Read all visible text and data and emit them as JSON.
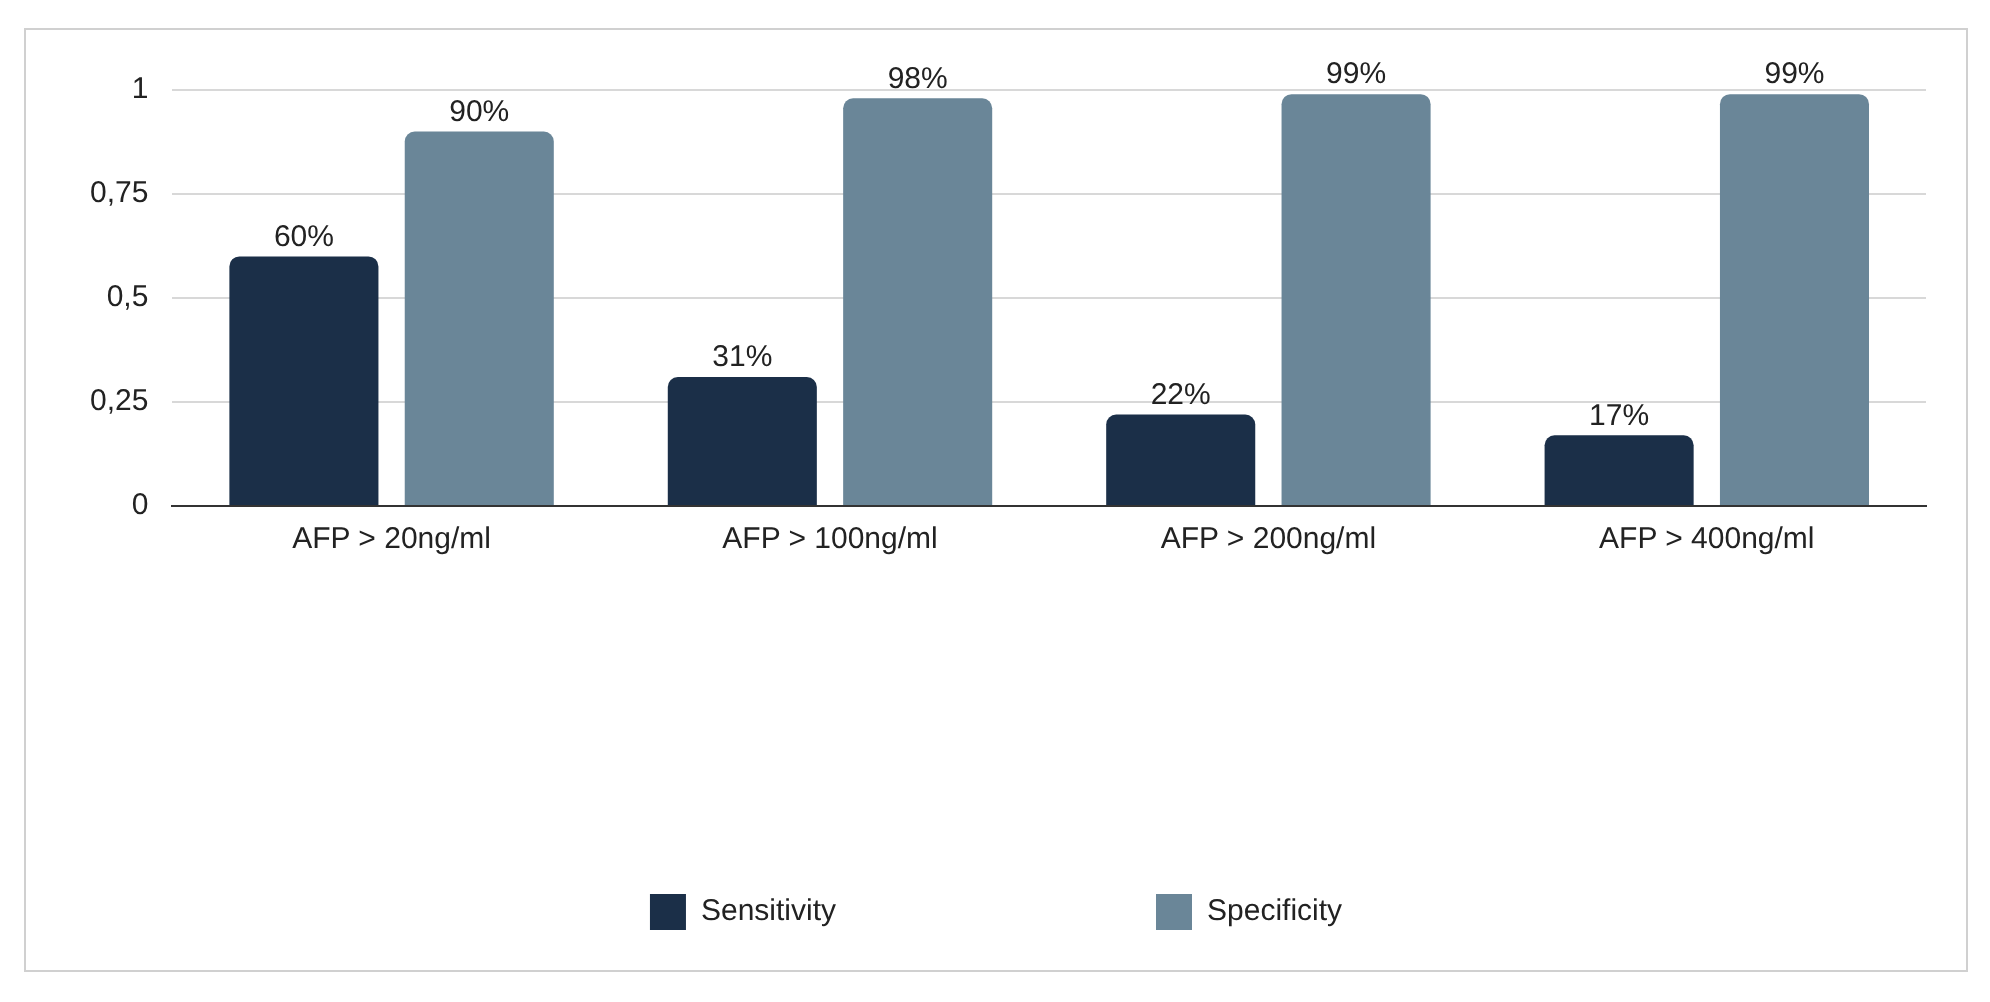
{
  "chart_data": {
    "type": "bar",
    "categories": [
      "AFP > 20ng/ml",
      "AFP > 100ng/ml",
      "AFP > 200ng/ml",
      "AFP > 400ng/ml"
    ],
    "series": [
      {
        "name": "Sensitivity",
        "color": "#1b2f48",
        "values": [
          0.6,
          0.31,
          0.22,
          0.17
        ],
        "value_labels": [
          "60%",
          "31%",
          "22%",
          "17%"
        ]
      },
      {
        "name": "Specificity",
        "color": "#6a8698",
        "values": [
          0.9,
          0.98,
          0.99,
          0.99
        ],
        "value_labels": [
          "90%",
          "98%",
          "99%",
          "99%"
        ]
      }
    ],
    "ylim": [
      0,
      1
    ],
    "yticks": [
      0,
      {
        "value": 0.25,
        "label": "0,25"
      },
      {
        "value": 0.5,
        "label": "0,5"
      },
      {
        "value": 0.75,
        "label": "0,75"
      },
      1
    ],
    "grid": "y",
    "legend": "bottom"
  }
}
